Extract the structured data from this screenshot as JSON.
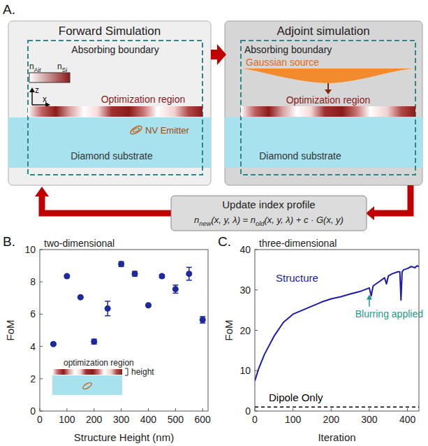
{
  "panel_a": {
    "label": "A.",
    "forward": {
      "title": "Forward Simulation",
      "boundary": "Absorbing boundary",
      "index_scale": {
        "low": {
          "base": "n",
          "sub": "Air"
        },
        "high": {
          "base": "n",
          "sub": "Si"
        }
      },
      "axes": {
        "vertical": "z",
        "horizontal": "x"
      },
      "region": "Optimization region",
      "emitter": "NV Emitter",
      "substrate": "Diamond substrate"
    },
    "adjoint": {
      "title": "Adjoint simulation",
      "boundary": "Absorbing boundary",
      "source": "Gaussian source",
      "region": "Optimization region",
      "substrate": "Diamond substrate"
    },
    "update": {
      "title": "Update index profile",
      "formula": [
        {
          "text": "n"
        },
        {
          "sub": "new"
        },
        {
          "text": "(x, y, λ) = n"
        },
        {
          "sub": "old"
        },
        {
          "text": "(x, y, λ) + c · G(x, y)"
        }
      ]
    }
  },
  "chart_data": [
    {
      "type": "scatter",
      "panel_label": "B.",
      "title": "two-dimensional",
      "x_label": "Structure Height (nm)",
      "y_label": "FoM",
      "xlim": [
        0,
        620
      ],
      "ylim": [
        0,
        10
      ],
      "xticks": [
        0,
        100,
        200,
        300,
        400,
        500,
        600
      ],
      "yticks": [
        0,
        2,
        4,
        6,
        8,
        10
      ],
      "grid": false,
      "inset": {
        "label": "optimization region",
        "dimension": "height"
      },
      "series": [
        {
          "color": "#1c2a9c",
          "marker": "circle",
          "x": [
            50,
            100,
            150,
            200,
            250,
            300,
            350,
            400,
            450,
            500,
            550,
            600
          ],
          "values": [
            4.15,
            8.35,
            7.05,
            4.3,
            6.35,
            9.1,
            8.5,
            6.55,
            8.35,
            7.55,
            8.5,
            5.65
          ],
          "errors": [
            0.05,
            0.08,
            0.05,
            0.15,
            0.45,
            0.15,
            0.15,
            0.05,
            0.1,
            0.25,
            0.4,
            0.2
          ]
        }
      ]
    },
    {
      "type": "line",
      "panel_label": "C.",
      "title": "three-dimensional",
      "x_label": "Iteration",
      "y_label": "FoM",
      "xlim": [
        0,
        430
      ],
      "ylim": [
        0,
        40
      ],
      "xticks": [
        0,
        100,
        200,
        300,
        400
      ],
      "yticks": [
        0,
        10,
        20,
        30,
        40
      ],
      "grid": false,
      "annotations": [
        {
          "text": "Blurring applied",
          "x": 300,
          "y": 29
        }
      ],
      "series": [
        {
          "name": "Structure",
          "color": "#1c1ca8",
          "x": [
            0,
            10,
            25,
            50,
            75,
            100,
            125,
            150,
            175,
            200,
            225,
            250,
            275,
            300,
            305,
            310,
            325,
            340,
            345,
            350,
            360,
            375,
            380,
            383,
            386,
            390,
            400,
            410,
            420,
            425,
            430
          ],
          "values": [
            7.5,
            10.5,
            14,
            18.5,
            22,
            24,
            25,
            26,
            27,
            27.8,
            28.3,
            29,
            29.6,
            30.5,
            28.5,
            31,
            32,
            33,
            31.5,
            33.5,
            34,
            34.5,
            34.5,
            27.5,
            34.5,
            35,
            35.3,
            35.8,
            35.5,
            36,
            35.8
          ]
        },
        {
          "name": "Dipole Only",
          "color": "#000000",
          "line_style": "dashed",
          "x": [
            0,
            430
          ],
          "values": [
            1,
            1
          ]
        }
      ]
    }
  ]
}
